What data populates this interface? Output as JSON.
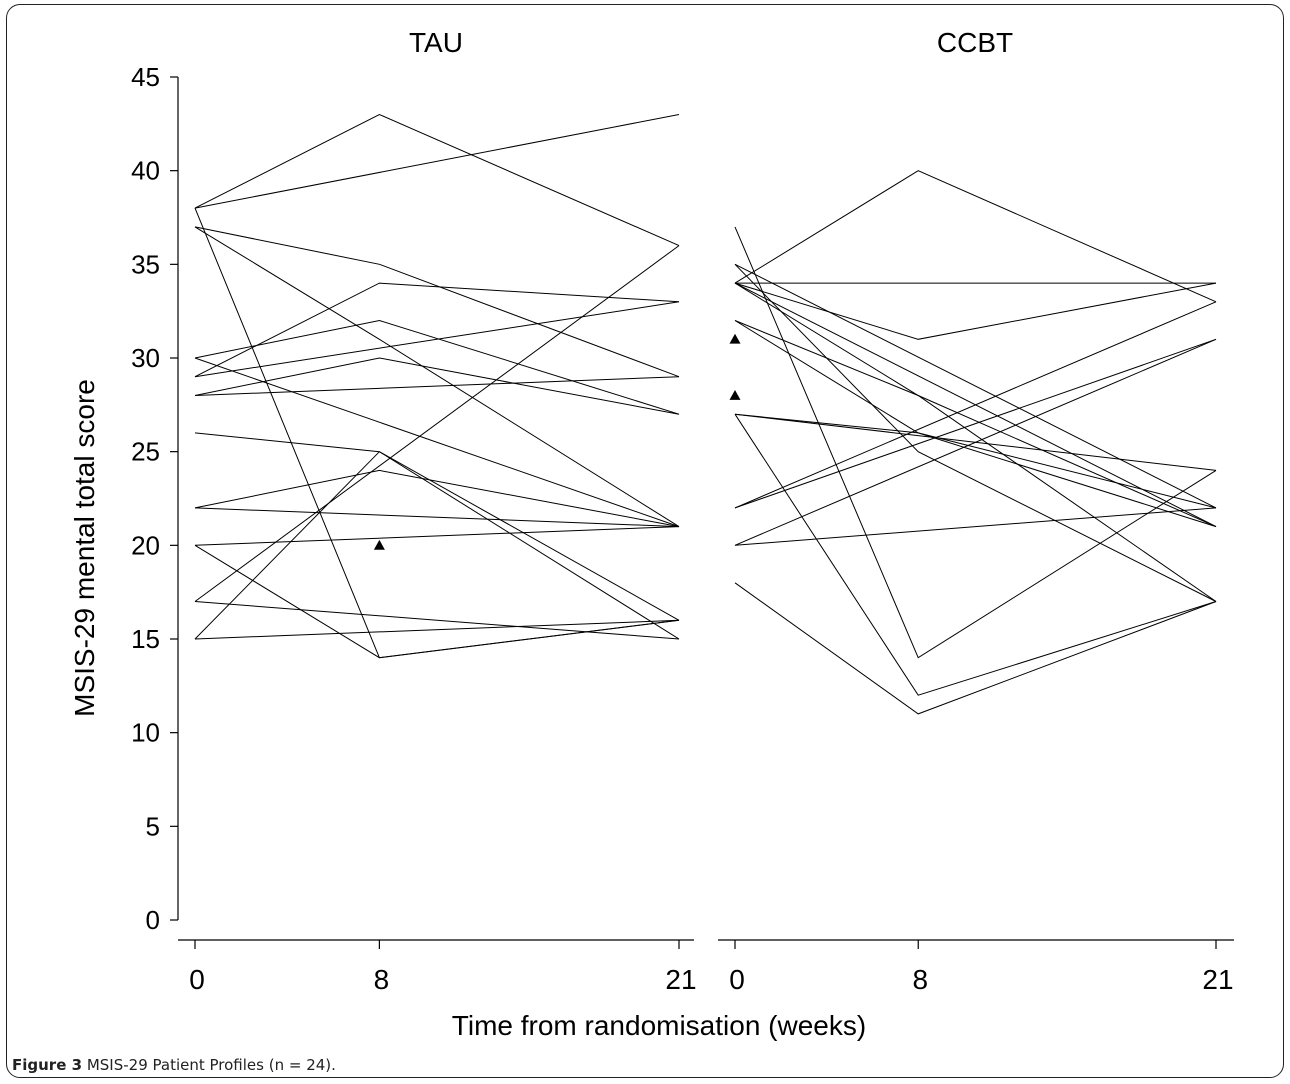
{
  "caption": {
    "label": "Figure 3",
    "text": "MSIS-29 Patient Profiles (n = 24)."
  },
  "colors": {
    "line": "#000000",
    "background": "#ffffff"
  },
  "chart_data": {
    "type": "line",
    "ylabel": "MSIS-29 mental total score",
    "xlabel": "Time from randomisation (weeks)",
    "ylim": [
      0,
      45
    ],
    "yticks": [
      0,
      5,
      10,
      15,
      20,
      25,
      30,
      35,
      40,
      45
    ],
    "xticks": [
      0,
      8,
      21
    ],
    "marker_note": "triangles mark single observations",
    "panels": [
      {
        "title": "TAU",
        "profiles": [
          [
            [
              0,
              38
            ],
            [
              8,
              43
            ],
            [
              21,
              36
            ]
          ],
          [
            [
              0,
              38
            ],
            [
              21,
              43
            ]
          ],
          [
            [
              0,
              38
            ],
            [
              8,
              14
            ],
            [
              21,
              16
            ]
          ],
          [
            [
              0,
              37
            ],
            [
              8,
              31
            ],
            [
              21,
              21
            ]
          ],
          [
            [
              0,
              37
            ],
            [
              8,
              35
            ],
            [
              21,
              29
            ]
          ],
          [
            [
              0,
              30
            ],
            [
              8,
              32
            ],
            [
              21,
              27
            ]
          ],
          [
            [
              0,
              30
            ],
            [
              21,
              21
            ]
          ],
          [
            [
              0,
              29
            ],
            [
              8,
              34
            ],
            [
              21,
              33
            ]
          ],
          [
            [
              0,
              29
            ],
            [
              21,
              33
            ]
          ],
          [
            [
              0,
              28
            ],
            [
              8,
              30
            ],
            [
              21,
              27
            ]
          ],
          [
            [
              0,
              28
            ],
            [
              21,
              29
            ]
          ],
          [
            [
              0,
              26
            ],
            [
              8,
              25
            ],
            [
              21,
              15
            ]
          ],
          [
            [
              0,
              22
            ],
            [
              8,
              24
            ],
            [
              21,
              21
            ]
          ],
          [
            [
              0,
              22
            ],
            [
              21,
              21
            ]
          ],
          [
            [
              0,
              20
            ],
            [
              21,
              21
            ]
          ],
          [
            [
              0,
              20
            ],
            [
              8,
              14
            ],
            [
              21,
              16
            ]
          ],
          [
            [
              0,
              17
            ],
            [
              21,
              36
            ]
          ],
          [
            [
              0,
              17
            ],
            [
              21,
              15
            ]
          ],
          [
            [
              0,
              15
            ],
            [
              8,
              25
            ],
            [
              21,
              16
            ]
          ],
          [
            [
              0,
              15
            ],
            [
              21,
              16
            ]
          ]
        ],
        "markers": [
          [
            8,
            20
          ]
        ]
      },
      {
        "title": "CCBT",
        "profiles": [
          [
            [
              0,
              37
            ],
            [
              8,
              14
            ],
            [
              21,
              24
            ]
          ],
          [
            [
              0,
              35
            ],
            [
              8,
              25
            ],
            [
              21,
              17
            ]
          ],
          [
            [
              0,
              35
            ],
            [
              21,
              22
            ]
          ],
          [
            [
              0,
              34
            ],
            [
              8,
              40
            ],
            [
              21,
              33
            ]
          ],
          [
            [
              0,
              34
            ],
            [
              8,
              31
            ],
            [
              21,
              34
            ]
          ],
          [
            [
              0,
              34
            ],
            [
              21,
              34
            ]
          ],
          [
            [
              0,
              34
            ],
            [
              21,
              21
            ]
          ],
          [
            [
              0,
              34
            ],
            [
              8,
              28
            ],
            [
              21,
              21
            ]
          ],
          [
            [
              0,
              32
            ],
            [
              8,
              28
            ],
            [
              21,
              17
            ]
          ],
          [
            [
              0,
              32
            ],
            [
              8,
              26
            ],
            [
              21,
              22
            ]
          ],
          [
            [
              0,
              27
            ],
            [
              8,
              12
            ],
            [
              21,
              17
            ]
          ],
          [
            [
              0,
              27
            ],
            [
              8,
              26
            ],
            [
              21,
              21
            ]
          ],
          [
            [
              0,
              27
            ],
            [
              21,
              24
            ]
          ],
          [
            [
              0,
              22
            ],
            [
              21,
              33
            ]
          ],
          [
            [
              0,
              22
            ],
            [
              21,
              31
            ]
          ],
          [
            [
              0,
              20
            ],
            [
              21,
              31
            ]
          ],
          [
            [
              0,
              20
            ],
            [
              21,
              22
            ]
          ],
          [
            [
              0,
              18
            ],
            [
              8,
              11
            ],
            [
              21,
              17
            ]
          ]
        ],
        "markers": [
          [
            0,
            31
          ],
          [
            0,
            28
          ]
        ]
      }
    ]
  }
}
